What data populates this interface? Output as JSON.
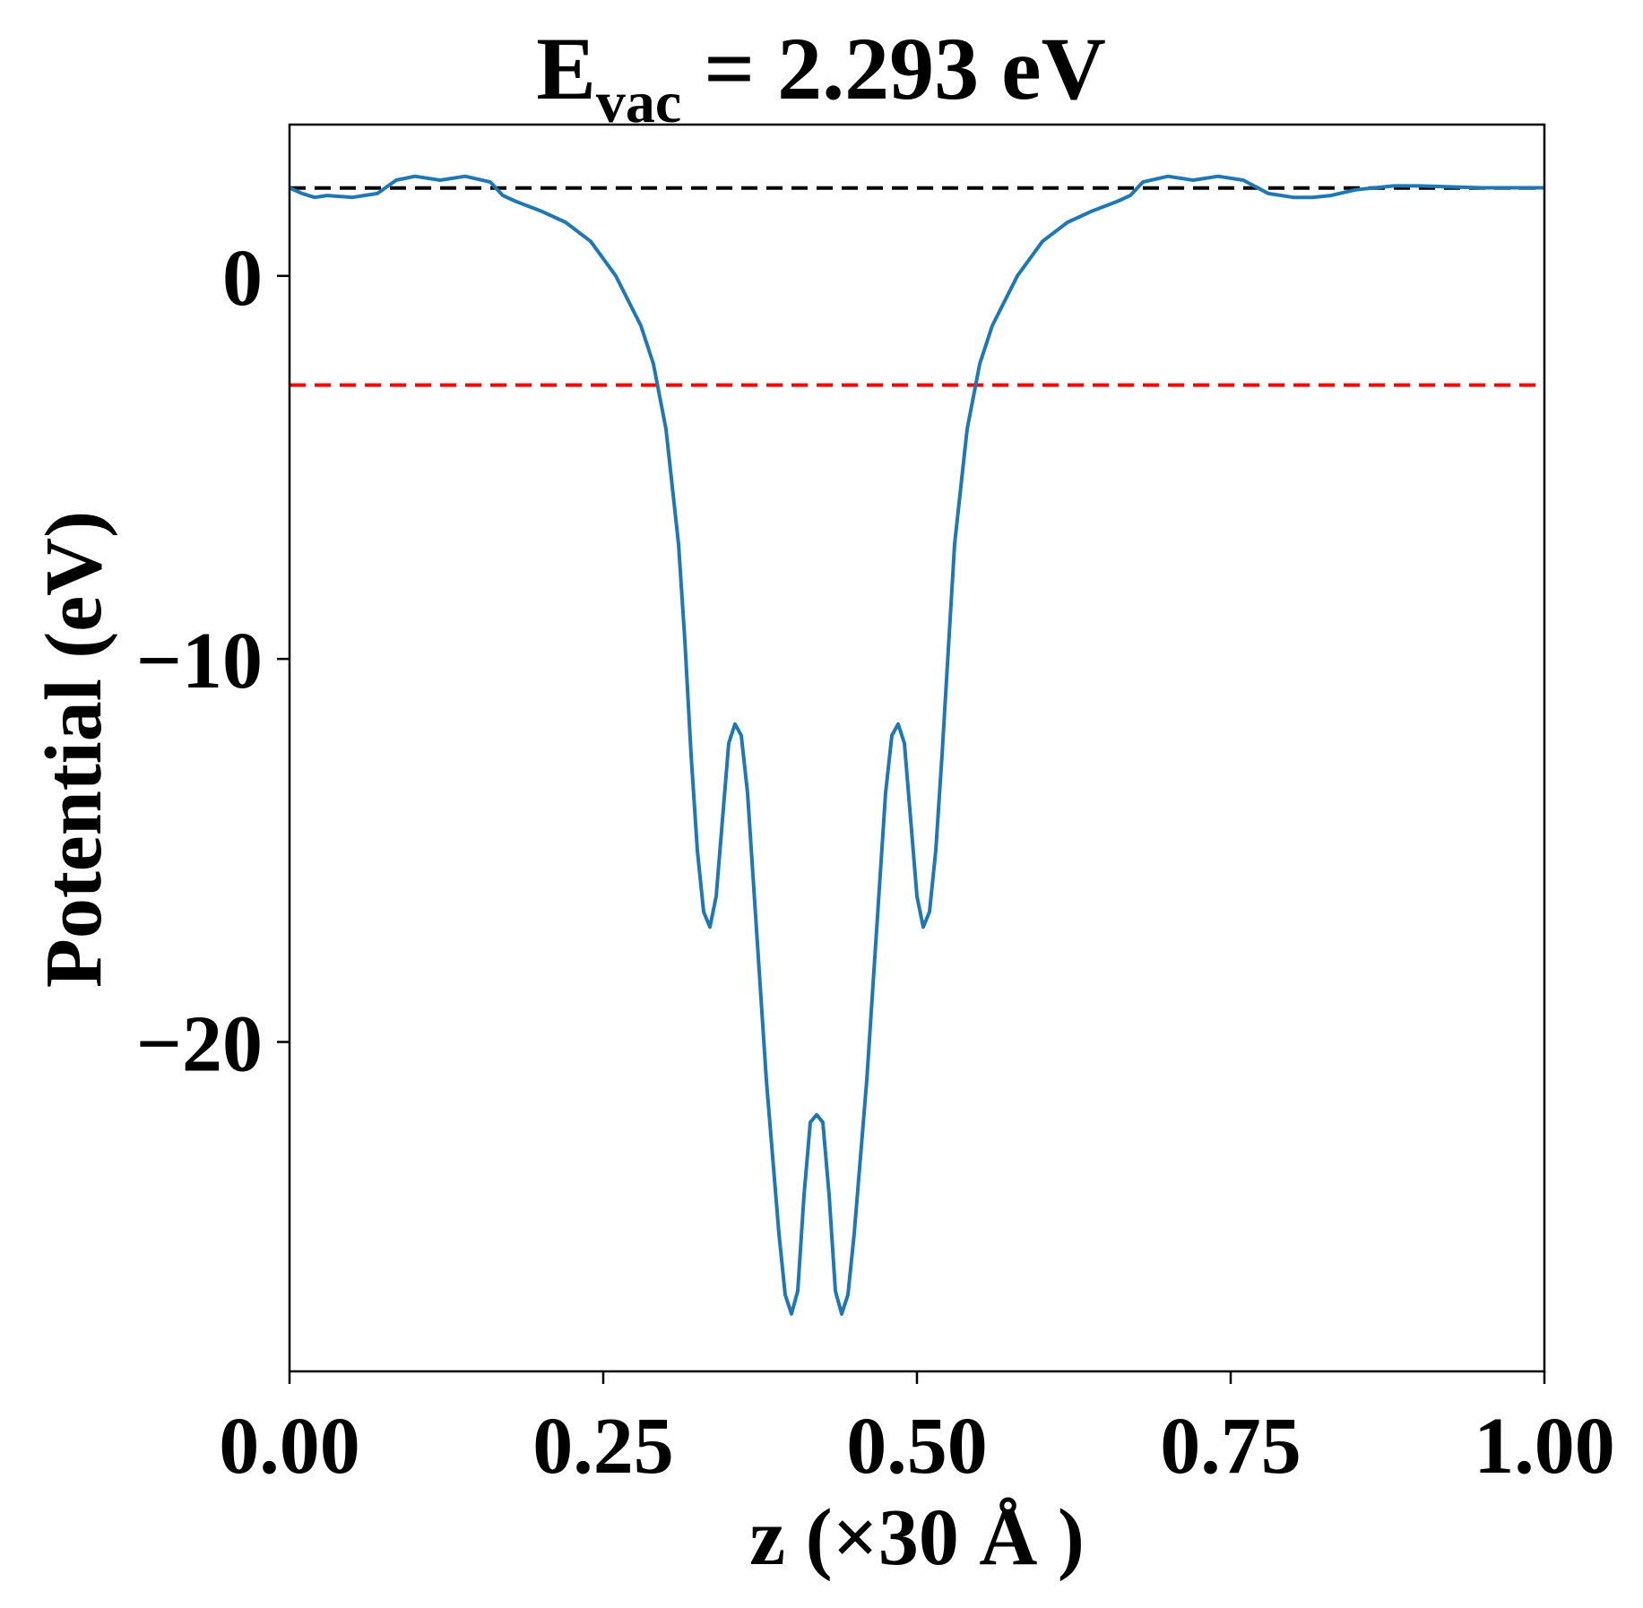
{
  "chart_data": {
    "type": "line",
    "title": {
      "main": "E",
      "subscript": "vac",
      "rest": " = 2.293 eV"
    },
    "xlabel": "z (×30 Å )",
    "ylabel": "Potential (eV)",
    "xlim": [
      0.0,
      1.0
    ],
    "ylim": [
      -28.6,
      3.95
    ],
    "xticks": [
      {
        "value": 0.0,
        "label": "0.00"
      },
      {
        "value": 0.25,
        "label": "0.25"
      },
      {
        "value": 0.5,
        "label": "0.50"
      },
      {
        "value": 0.75,
        "label": "0.75"
      },
      {
        "value": 1.0,
        "label": "1.00"
      }
    ],
    "yticks": [
      {
        "value": 0,
        "label": "0"
      },
      {
        "value": -10,
        "label": "−10"
      },
      {
        "value": -20,
        "label": "−20"
      }
    ],
    "grid": false,
    "legend": "none",
    "reference_lines": [
      {
        "y": 2.293,
        "style": "dashed",
        "color": "#000000"
      },
      {
        "y": -2.85,
        "style": "dashed",
        "color": "#ff0000"
      }
    ],
    "series": [
      {
        "color": "#1f77b4",
        "x": [
          0.0,
          0.01,
          0.02,
          0.03,
          0.05,
          0.07,
          0.085,
          0.1,
          0.12,
          0.14,
          0.16,
          0.17,
          0.18,
          0.2,
          0.22,
          0.24,
          0.26,
          0.28,
          0.29,
          0.3,
          0.31,
          0.315,
          0.32,
          0.325,
          0.33,
          0.335,
          0.34,
          0.345,
          0.35,
          0.355,
          0.36,
          0.365,
          0.37,
          0.38,
          0.39,
          0.395,
          0.4,
          0.405,
          0.41,
          0.415,
          0.42,
          0.425,
          0.43,
          0.435,
          0.44,
          0.445,
          0.45,
          0.46,
          0.47,
          0.475,
          0.48,
          0.485,
          0.49,
          0.495,
          0.5,
          0.505,
          0.51,
          0.515,
          0.52,
          0.53,
          0.54,
          0.55,
          0.56,
          0.58,
          0.6,
          0.62,
          0.64,
          0.66,
          0.67,
          0.68,
          0.7,
          0.72,
          0.74,
          0.76,
          0.78,
          0.8,
          0.815,
          0.83,
          0.85,
          0.88,
          0.9,
          0.95,
          1.0
        ],
        "y": [
          2.3,
          2.15,
          2.05,
          2.1,
          2.05,
          2.15,
          2.5,
          2.6,
          2.5,
          2.6,
          2.45,
          2.1,
          1.95,
          1.7,
          1.4,
          0.9,
          0.0,
          -1.3,
          -2.3,
          -4.0,
          -7.0,
          -9.5,
          -12.5,
          -15.0,
          -16.6,
          -17.0,
          -16.2,
          -14.2,
          -12.2,
          -11.7,
          -12.0,
          -13.5,
          -16.0,
          -21.0,
          -25.0,
          -26.6,
          -27.1,
          -26.5,
          -24.0,
          -22.1,
          -21.9,
          -22.1,
          -24.0,
          -26.5,
          -27.1,
          -26.6,
          -25.0,
          -21.0,
          -16.0,
          -13.5,
          -12.0,
          -11.7,
          -12.2,
          -14.2,
          -16.2,
          -17.0,
          -16.6,
          -15.0,
          -12.5,
          -7.0,
          -4.0,
          -2.3,
          -1.3,
          0.0,
          0.9,
          1.4,
          1.7,
          1.95,
          2.1,
          2.45,
          2.6,
          2.5,
          2.6,
          2.5,
          2.15,
          2.05,
          2.05,
          2.1,
          2.25,
          2.35,
          2.35,
          2.3,
          2.3
        ]
      }
    ]
  }
}
